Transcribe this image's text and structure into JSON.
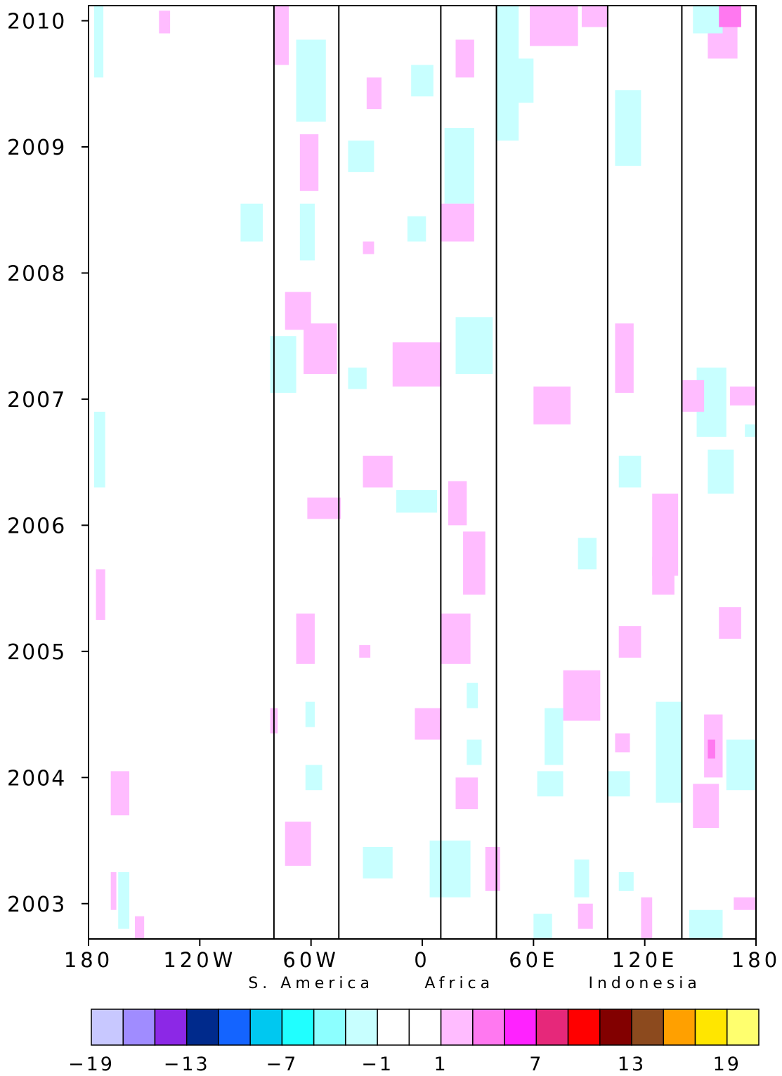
{
  "chart_data": {
    "type": "heatmap",
    "title": "",
    "xlabel": "",
    "ylabel": "",
    "x_axis": {
      "range": [
        -180,
        180
      ],
      "ticks": [
        {
          "value": -180,
          "label": "180"
        },
        {
          "value": -120,
          "label": "120W"
        },
        {
          "value": -60,
          "label": "60W"
        },
        {
          "value": 0,
          "label": "0"
        },
        {
          "value": 60,
          "label": "60E"
        },
        {
          "value": 120,
          "label": "120E"
        },
        {
          "value": 180,
          "label": "180"
        }
      ]
    },
    "y_axis": {
      "range": [
        2002.72,
        2010.12
      ],
      "ticks": [
        {
          "value": 2003,
          "label": "2003"
        },
        {
          "value": 2004,
          "label": "2004"
        },
        {
          "value": 2005,
          "label": "2005"
        },
        {
          "value": 2006,
          "label": "2006"
        },
        {
          "value": 2007,
          "label": "2007"
        },
        {
          "value": 2008,
          "label": "2008"
        },
        {
          "value": 2009,
          "label": "2009"
        },
        {
          "value": 2010,
          "label": "2010"
        }
      ]
    },
    "region_lines": [
      -80,
      -45,
      10,
      40,
      100,
      140
    ],
    "region_labels": [
      {
        "text": "S. America",
        "center_lon": -60
      },
      {
        "text": "Africa",
        "center_lon": 20
      },
      {
        "text": "Indonesia",
        "center_lon": 120
      }
    ],
    "colorbar": {
      "colors": [
        "#c8c8ff",
        "#a08cff",
        "#8c28e6",
        "#002a8c",
        "#1464ff",
        "#00c8f0",
        "#20ffff",
        "#8cffff",
        "#c8ffff",
        "#ffffff",
        "#ffffff",
        "#ffbcff",
        "#ff78f0",
        "#ff22ff",
        "#e6287a",
        "#ff0000",
        "#820000",
        "#8c4a1e",
        "#ffa000",
        "#ffe600",
        "#ffff6e"
      ],
      "tick_labels": [
        "−19",
        "−13",
        "−7",
        "−1",
        "1",
        "7",
        "13",
        "19"
      ],
      "tick_boundaries": [
        0,
        3,
        6,
        9,
        11,
        14,
        17,
        20
      ]
    },
    "anomaly_patches": [
      {
        "lon": [
          -177,
          -172
        ],
        "t": [
          2009.55,
          2010.12
        ],
        "v": -2
      },
      {
        "lon": [
          -177,
          -171
        ],
        "t": [
          2006.3,
          2006.9
        ],
        "v": -2
      },
      {
        "lon": [
          -176,
          -171
        ],
        "t": [
          2005.25,
          2005.65
        ],
        "v": 2
      },
      {
        "lon": [
          -168,
          -158
        ],
        "t": [
          2003.7,
          2004.05
        ],
        "v": 2
      },
      {
        "lon": [
          -168,
          -165
        ],
        "t": [
          2002.95,
          2003.25
        ],
        "v": 2
      },
      {
        "lon": [
          -164,
          -158
        ],
        "t": [
          2002.8,
          2003.25
        ],
        "v": -2
      },
      {
        "lon": [
          -155,
          -150
        ],
        "t": [
          2002.72,
          2002.9
        ],
        "v": 2
      },
      {
        "lon": [
          -142,
          -136
        ],
        "t": [
          2009.9,
          2010.08
        ],
        "v": 2
      },
      {
        "lon": [
          -98,
          -86
        ],
        "t": [
          2008.25,
          2008.55
        ],
        "v": -2
      },
      {
        "lon": [
          -80,
          -72
        ],
        "t": [
          2009.65,
          2010.12
        ],
        "v": 2
      },
      {
        "lon": [
          -68,
          -52
        ],
        "t": [
          2009.2,
          2009.85
        ],
        "v": -2
      },
      {
        "lon": [
          -66,
          -56
        ],
        "t": [
          2008.65,
          2009.1
        ],
        "v": 2
      },
      {
        "lon": [
          -66,
          -58
        ],
        "t": [
          2008.1,
          2008.55
        ],
        "v": -2
      },
      {
        "lon": [
          -74,
          -60
        ],
        "t": [
          2007.55,
          2007.85
        ],
        "v": 2
      },
      {
        "lon": [
          -64,
          -46
        ],
        "t": [
          2007.2,
          2007.6
        ],
        "v": 2
      },
      {
        "lon": [
          -82,
          -68
        ],
        "t": [
          2007.05,
          2007.5
        ],
        "v": -2
      },
      {
        "lon": [
          -62,
          -44
        ],
        "t": [
          2006.05,
          2006.22
        ],
        "v": 2
      },
      {
        "lon": [
          -68,
          -58
        ],
        "t": [
          2004.9,
          2005.3
        ],
        "v": 2
      },
      {
        "lon": [
          -74,
          -60
        ],
        "t": [
          2003.3,
          2003.65
        ],
        "v": 2
      },
      {
        "lon": [
          -63,
          -54
        ],
        "t": [
          2003.9,
          2004.1
        ],
        "v": -2
      },
      {
        "lon": [
          -63,
          -58
        ],
        "t": [
          2004.4,
          2004.6
        ],
        "v": -2
      },
      {
        "lon": [
          -82,
          -78
        ],
        "t": [
          2004.35,
          2004.55
        ],
        "v": 2
      },
      {
        "lon": [
          -30,
          -22
        ],
        "t": [
          2009.3,
          2009.55
        ],
        "v": 2
      },
      {
        "lon": [
          -40,
          -26
        ],
        "t": [
          2008.8,
          2009.05
        ],
        "v": -2
      },
      {
        "lon": [
          -8,
          2
        ],
        "t": [
          2008.25,
          2008.45
        ],
        "v": -2
      },
      {
        "lon": [
          -32,
          -26
        ],
        "t": [
          2008.15,
          2008.25
        ],
        "v": 2
      },
      {
        "lon": [
          -16,
          10
        ],
        "t": [
          2007.1,
          2007.45
        ],
        "v": 2
      },
      {
        "lon": [
          -40,
          -30
        ],
        "t": [
          2007.08,
          2007.25
        ],
        "v": -2
      },
      {
        "lon": [
          -32,
          -16
        ],
        "t": [
          2006.3,
          2006.55
        ],
        "v": 2
      },
      {
        "lon": [
          -14,
          8
        ],
        "t": [
          2006.1,
          2006.28
        ],
        "v": -2
      },
      {
        "lon": [
          -6,
          6
        ],
        "t": [
          2009.4,
          2009.65
        ],
        "v": -2
      },
      {
        "lon": [
          -34,
          -28
        ],
        "t": [
          2004.95,
          2005.05
        ],
        "v": 2
      },
      {
        "lon": [
          -4,
          10
        ],
        "t": [
          2004.3,
          2004.55
        ],
        "v": 2
      },
      {
        "lon": [
          -32,
          -16
        ],
        "t": [
          2003.2,
          2003.45
        ],
        "v": -2
      },
      {
        "lon": [
          4,
          26
        ],
        "t": [
          2003.05,
          2003.5
        ],
        "v": -2
      },
      {
        "lon": [
          18,
          28
        ],
        "t": [
          2009.55,
          2009.85
        ],
        "v": 2
      },
      {
        "lon": [
          12,
          28
        ],
        "t": [
          2008.55,
          2009.15
        ],
        "v": -2
      },
      {
        "lon": [
          10,
          28
        ],
        "t": [
          2008.25,
          2008.55
        ],
        "v": 2
      },
      {
        "lon": [
          18,
          38
        ],
        "t": [
          2007.2,
          2007.65
        ],
        "v": -2
      },
      {
        "lon": [
          14,
          24
        ],
        "t": [
          2006.0,
          2006.35
        ],
        "v": 2
      },
      {
        "lon": [
          22,
          34
        ],
        "t": [
          2005.45,
          2005.95
        ],
        "v": 2
      },
      {
        "lon": [
          10,
          26
        ],
        "t": [
          2004.9,
          2005.3
        ],
        "v": 2
      },
      {
        "lon": [
          24,
          30
        ],
        "t": [
          2004.55,
          2004.75
        ],
        "v": -2
      },
      {
        "lon": [
          18,
          30
        ],
        "t": [
          2003.75,
          2004.0
        ],
        "v": 2
      },
      {
        "lon": [
          24,
          32
        ],
        "t": [
          2004.1,
          2004.3
        ],
        "v": -2
      },
      {
        "lon": [
          40,
          52
        ],
        "t": [
          2009.05,
          2010.12
        ],
        "v": -2
      },
      {
        "lon": [
          50,
          60
        ],
        "t": [
          2009.35,
          2009.7
        ],
        "v": -2
      },
      {
        "lon": [
          58,
          84
        ],
        "t": [
          2009.8,
          2010.12
        ],
        "v": 2
      },
      {
        "lon": [
          86,
          100
        ],
        "t": [
          2009.95,
          2010.12
        ],
        "v": 2
      },
      {
        "lon": [
          60,
          80
        ],
        "t": [
          2006.8,
          2007.1
        ],
        "v": 2
      },
      {
        "lon": [
          76,
          96
        ],
        "t": [
          2004.45,
          2004.85
        ],
        "v": 2
      },
      {
        "lon": [
          66,
          76
        ],
        "t": [
          2004.1,
          2004.55
        ],
        "v": -2
      },
      {
        "lon": [
          34,
          42
        ],
        "t": [
          2003.1,
          2003.45
        ],
        "v": 2
      },
      {
        "lon": [
          84,
          94
        ],
        "t": [
          2005.65,
          2005.9
        ],
        "v": -2
      },
      {
        "lon": [
          62,
          76
        ],
        "t": [
          2003.85,
          2004.05
        ],
        "v": -2
      },
      {
        "lon": [
          82,
          90
        ],
        "t": [
          2003.05,
          2003.35
        ],
        "v": -2
      },
      {
        "lon": [
          84,
          92
        ],
        "t": [
          2002.8,
          2003.0
        ],
        "v": 2
      },
      {
        "lon": [
          60,
          70
        ],
        "t": [
          2002.72,
          2002.92
        ],
        "v": -2
      },
      {
        "lon": [
          104,
          118
        ],
        "t": [
          2008.85,
          2009.45
        ],
        "v": -2
      },
      {
        "lon": [
          104,
          114
        ],
        "t": [
          2007.05,
          2007.6
        ],
        "v": 2
      },
      {
        "lon": [
          106,
          118
        ],
        "t": [
          2006.3,
          2006.55
        ],
        "v": -2
      },
      {
        "lon": [
          124,
          138
        ],
        "t": [
          2005.6,
          2006.25
        ],
        "v": 2
      },
      {
        "lon": [
          106,
          118
        ],
        "t": [
          2004.95,
          2005.2
        ],
        "v": 2
      },
      {
        "lon": [
          126,
          140
        ],
        "t": [
          2003.8,
          2004.6
        ],
        "v": -2
      },
      {
        "lon": [
          100,
          112
        ],
        "t": [
          2003.85,
          2004.05
        ],
        "v": -2
      },
      {
        "lon": [
          104,
          112
        ],
        "t": [
          2004.2,
          2004.35
        ],
        "v": 2
      },
      {
        "lon": [
          118,
          124
        ],
        "t": [
          2002.72,
          2003.05
        ],
        "v": 2
      },
      {
        "lon": [
          106,
          114
        ],
        "t": [
          2003.1,
          2003.25
        ],
        "v": -2
      },
      {
        "lon": [
          124,
          136
        ],
        "t": [
          2005.45,
          2005.75
        ],
        "v": 2
      },
      {
        "lon": [
          154,
          170
        ],
        "t": [
          2009.7,
          2010.12
        ],
        "v": 2
      },
      {
        "lon": [
          146,
          162
        ],
        "t": [
          2009.9,
          2010.12
        ],
        "v": -2
      },
      {
        "lon": [
          160,
          172
        ],
        "t": [
          2009.95,
          2010.12
        ],
        "v": 3
      },
      {
        "lon": [
          148,
          164
        ],
        "t": [
          2006.7,
          2007.25
        ],
        "v": -2
      },
      {
        "lon": [
          140,
          152
        ],
        "t": [
          2006.9,
          2007.15
        ],
        "v": 2
      },
      {
        "lon": [
          154,
          168
        ],
        "t": [
          2006.25,
          2006.6
        ],
        "v": -2
      },
      {
        "lon": [
          160,
          172
        ],
        "t": [
          2005.1,
          2005.35
        ],
        "v": 2
      },
      {
        "lon": [
          152,
          162
        ],
        "t": [
          2004.0,
          2004.5
        ],
        "v": 2
      },
      {
        "lon": [
          154,
          158
        ],
        "t": [
          2004.15,
          2004.3
        ],
        "v": 3
      },
      {
        "lon": [
          164,
          180
        ],
        "t": [
          2003.9,
          2004.3
        ],
        "v": -2
      },
      {
        "lon": [
          146,
          160
        ],
        "t": [
          2003.6,
          2003.95
        ],
        "v": 2
      },
      {
        "lon": [
          144,
          162
        ],
        "t": [
          2002.72,
          2002.95
        ],
        "v": -2
      },
      {
        "lon": [
          168,
          180
        ],
        "t": [
          2002.95,
          2003.05
        ],
        "v": 2
      },
      {
        "lon": [
          166,
          180
        ],
        "t": [
          2006.95,
          2007.1
        ],
        "v": 2
      },
      {
        "lon": [
          174,
          180
        ],
        "t": [
          2006.7,
          2006.8
        ],
        "v": -2
      }
    ]
  }
}
